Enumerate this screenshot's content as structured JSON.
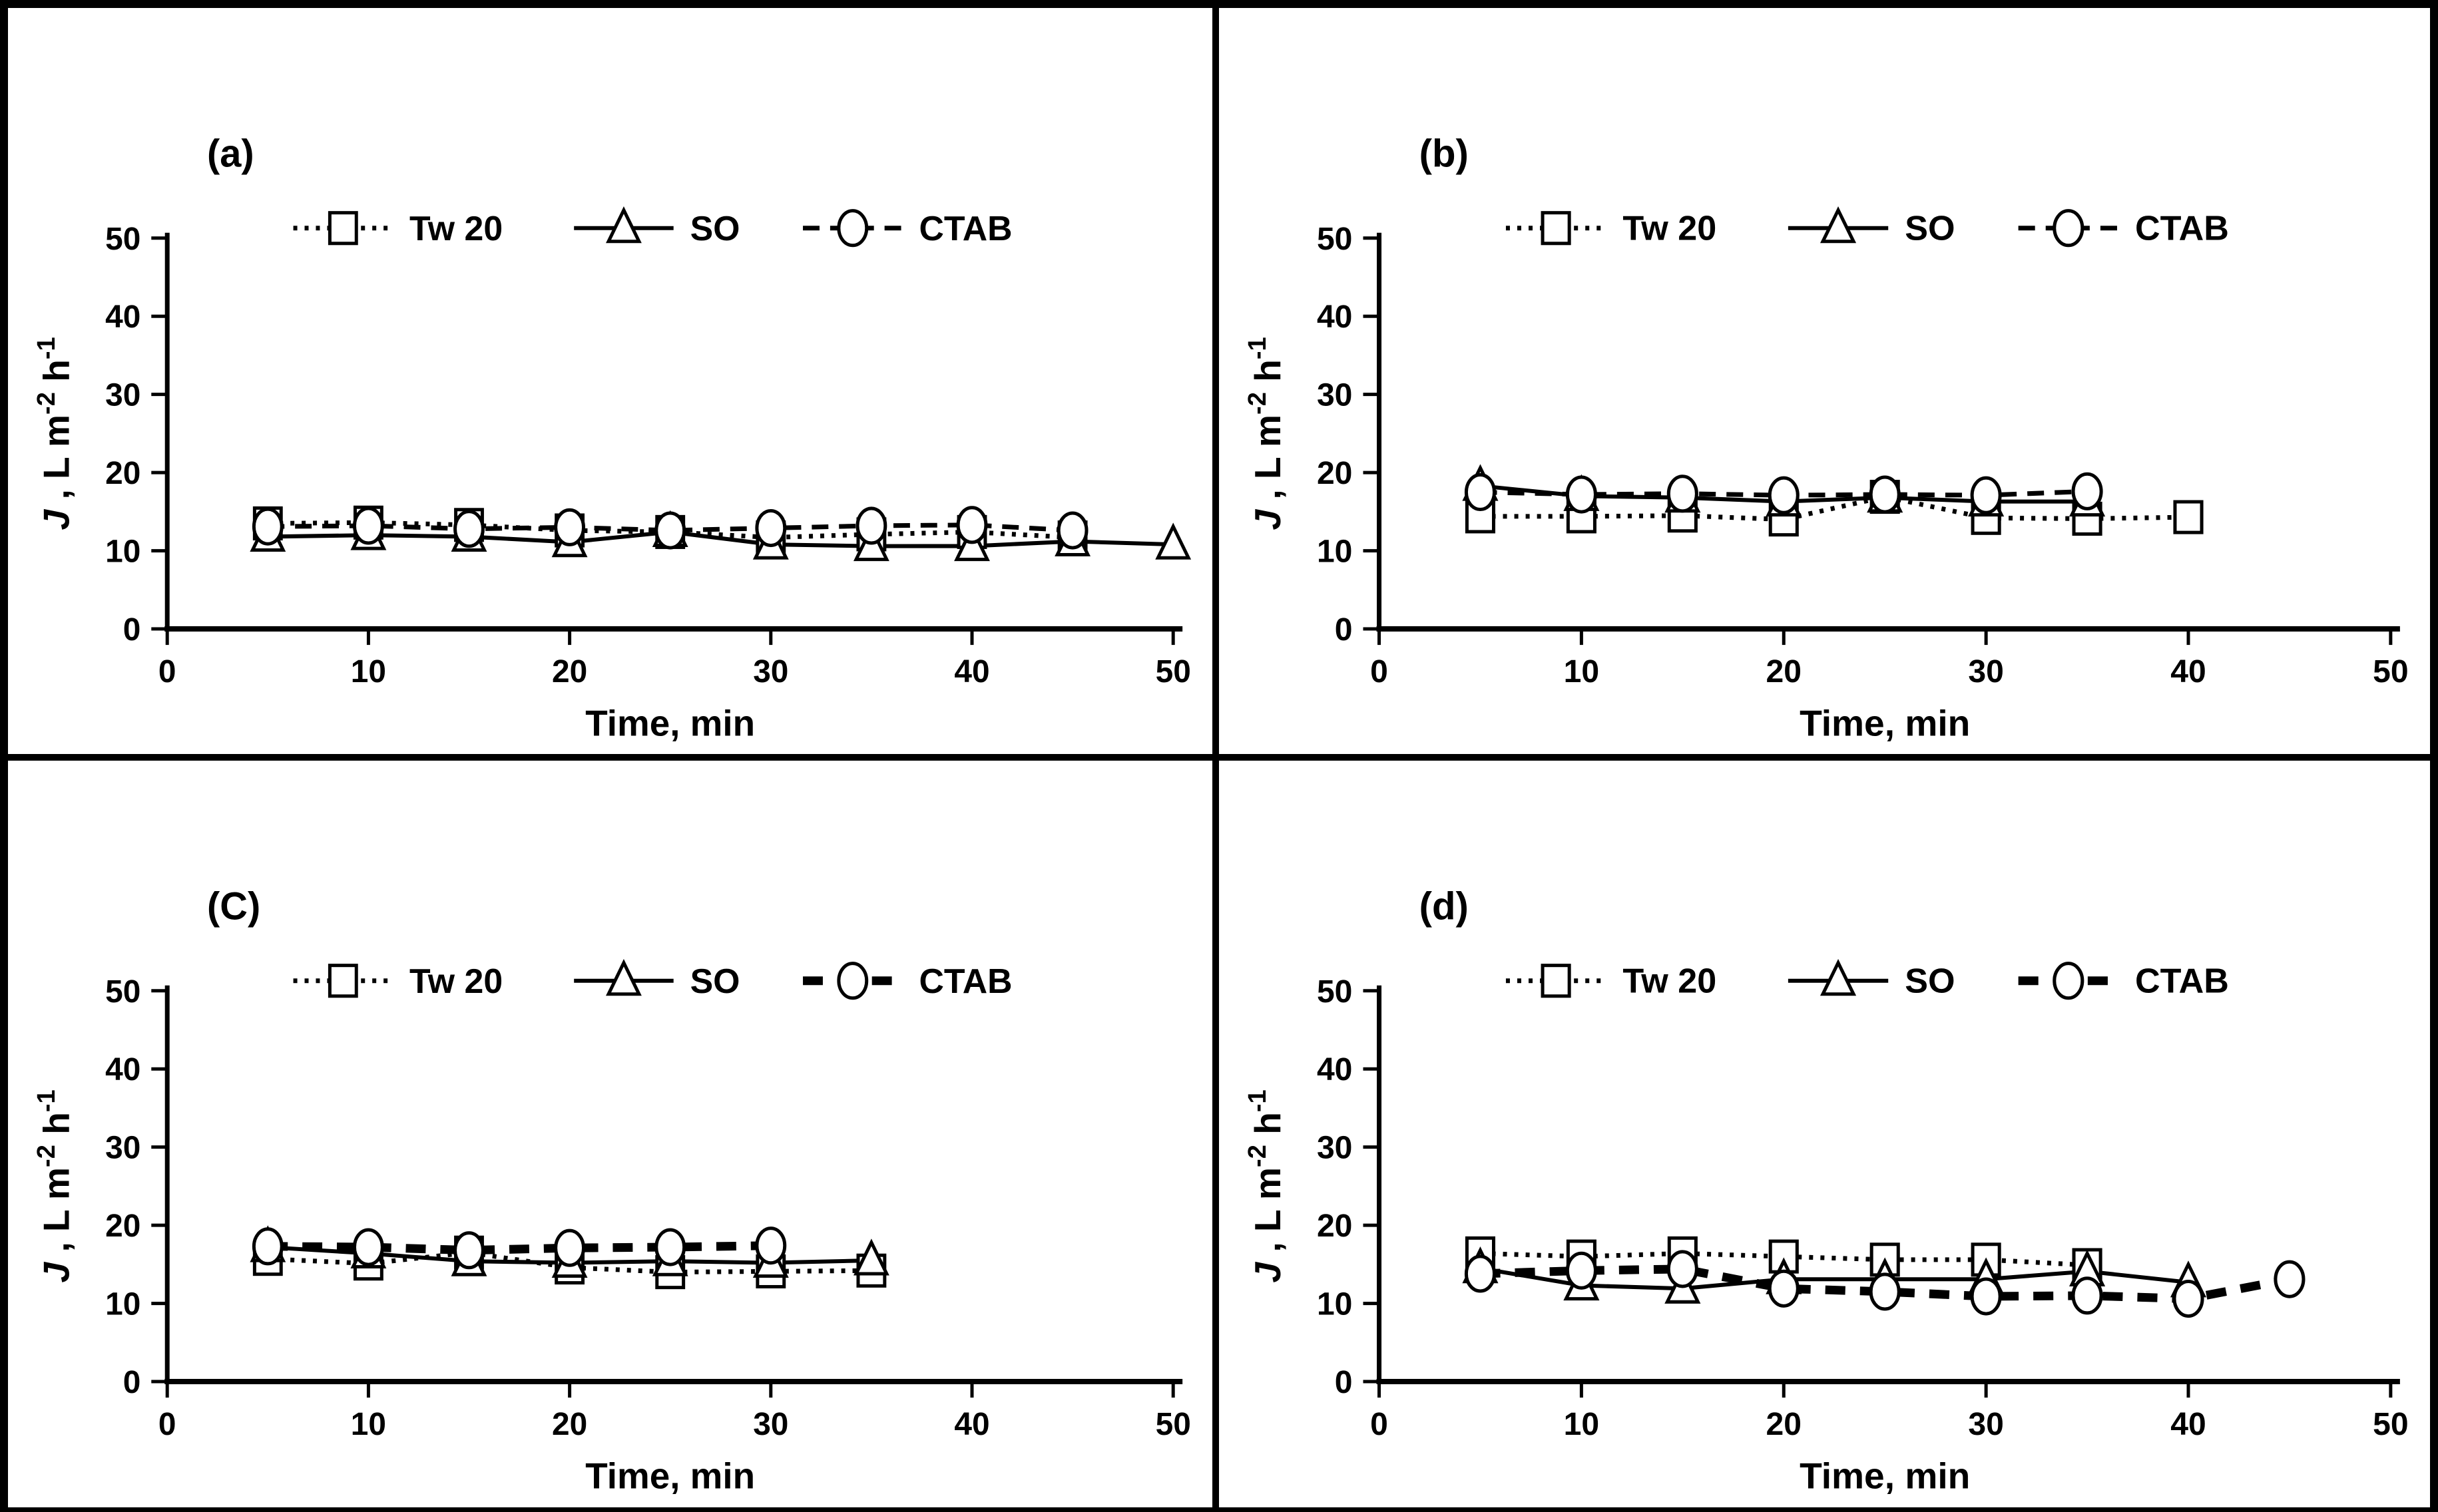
{
  "figure": {
    "background": "#ffffff",
    "line_color": "#000000",
    "panel_count": 4
  },
  "chart_data": [
    {
      "type": "line",
      "panel_label": "(a)",
      "xlabel": "Time, min",
      "ylabel": "J, L m-2 h-1",
      "ylabel_segments": [
        {
          "t": "J",
          "italic": true
        },
        {
          "t": " , L m"
        },
        {
          "t": "-2",
          "sup": true
        },
        {
          "t": " h"
        },
        {
          "t": "-1",
          "sup": true
        }
      ],
      "xlim": [
        0,
        50
      ],
      "ylim": [
        0,
        50
      ],
      "xticks": [
        0,
        10,
        20,
        30,
        40,
        50
      ],
      "yticks": [
        0,
        10,
        20,
        30,
        40,
        50
      ],
      "grid": false,
      "legend_position": "top-inside",
      "series": [
        {
          "name": "Tw 20",
          "marker": "square",
          "line": "dotted",
          "heavy": false,
          "x": [
            5,
            10,
            15,
            20,
            25,
            30,
            35,
            40,
            45
          ],
          "y": [
            13.5,
            13.6,
            13.3,
            12.6,
            12.4,
            11.7,
            12.1,
            12.4,
            11.7
          ]
        },
        {
          "name": "SO",
          "marker": "triangle",
          "line": "solid",
          "heavy": false,
          "x": [
            5,
            10,
            15,
            20,
            25,
            30,
            35,
            40,
            45,
            50
          ],
          "y": [
            11.8,
            12.0,
            11.8,
            11.1,
            12.4,
            10.8,
            10.6,
            10.6,
            11.2,
            10.8
          ]
        },
        {
          "name": "CTAB",
          "marker": "circle",
          "line": "dashed",
          "heavy": false,
          "x": [
            5,
            10,
            15,
            20,
            25,
            30,
            35,
            40,
            45
          ],
          "y": [
            13.1,
            13.2,
            12.8,
            13.0,
            12.6,
            12.9,
            13.2,
            13.3,
            12.6
          ]
        }
      ]
    },
    {
      "type": "line",
      "panel_label": "(b)",
      "xlabel": "Time, min",
      "ylabel": "J, L m-2 h-1",
      "ylabel_segments": [
        {
          "t": "J",
          "italic": true
        },
        {
          "t": " , L m"
        },
        {
          "t": "-2",
          "sup": true
        },
        {
          "t": " h"
        },
        {
          "t": "-1",
          "sup": true
        }
      ],
      "xlim": [
        0,
        50
      ],
      "ylim": [
        0,
        50
      ],
      "xticks": [
        0,
        10,
        20,
        30,
        40,
        50
      ],
      "yticks": [
        0,
        10,
        20,
        30,
        40,
        50
      ],
      "grid": false,
      "legend_position": "top-inside",
      "series": [
        {
          "name": "Tw 20",
          "marker": "square",
          "line": "dotted",
          "heavy": false,
          "x": [
            5,
            10,
            15,
            20,
            25,
            30,
            35,
            40
          ],
          "y": [
            14.4,
            14.4,
            14.5,
            14.0,
            16.9,
            14.2,
            14.1,
            14.3
          ]
        },
        {
          "name": "SO",
          "marker": "triangle",
          "line": "solid",
          "heavy": false,
          "x": [
            5,
            10,
            15,
            20,
            25,
            30,
            35
          ],
          "y": [
            18.3,
            17.0,
            16.8,
            16.3,
            16.8,
            16.3,
            16.3
          ]
        },
        {
          "name": "CTAB",
          "marker": "circle",
          "line": "dashed",
          "heavy": false,
          "x": [
            5,
            10,
            15,
            20,
            25,
            30,
            35
          ],
          "y": [
            17.5,
            17.2,
            17.3,
            17.1,
            17.2,
            17.1,
            17.6
          ]
        }
      ]
    },
    {
      "type": "line",
      "panel_label": "(C)",
      "xlabel": "Time, min",
      "ylabel": "J, L m-2 h-1",
      "ylabel_segments": [
        {
          "t": "J",
          "italic": true
        },
        {
          "t": " , L m"
        },
        {
          "t": "-2",
          "sup": true
        },
        {
          "t": " h"
        },
        {
          "t": "-1",
          "sup": true
        }
      ],
      "xlim": [
        0,
        50
      ],
      "ylim": [
        0,
        50
      ],
      "xticks": [
        0,
        10,
        20,
        30,
        40,
        50
      ],
      "yticks": [
        0,
        10,
        20,
        30,
        40,
        50
      ],
      "grid": false,
      "legend_position": "top-inside",
      "series": [
        {
          "name": "Tw 20",
          "marker": "square",
          "line": "dotted",
          "heavy": false,
          "x": [
            5,
            10,
            15,
            20,
            25,
            30,
            35
          ],
          "y": [
            15.7,
            15.1,
            16.5,
            14.6,
            14.0,
            14.1,
            14.2
          ]
        },
        {
          "name": "SO",
          "marker": "triangle",
          "line": "solid",
          "heavy": false,
          "x": [
            5,
            10,
            15,
            20,
            25,
            30,
            35
          ],
          "y": [
            17.2,
            16.4,
            15.4,
            15.2,
            15.4,
            15.2,
            15.5
          ]
        },
        {
          "name": "CTAB",
          "marker": "circle",
          "line": "dashed",
          "heavy": true,
          "x": [
            5,
            10,
            15,
            20,
            25,
            30
          ],
          "y": [
            17.3,
            17.2,
            16.8,
            17.1,
            17.2,
            17.4
          ]
        }
      ]
    },
    {
      "type": "line",
      "panel_label": "(d)",
      "xlabel": "Time, min",
      "ylabel": "J, L m-2 h-1",
      "ylabel_segments": [
        {
          "t": "J",
          "italic": true
        },
        {
          "t": " , L m"
        },
        {
          "t": "-2",
          "sup": true
        },
        {
          "t": " h"
        },
        {
          "t": "-1",
          "sup": true
        }
      ],
      "xlim": [
        0,
        50
      ],
      "ylim": [
        0,
        50
      ],
      "xticks": [
        0,
        10,
        20,
        30,
        40,
        50
      ],
      "yticks": [
        0,
        10,
        20,
        30,
        40,
        50
      ],
      "grid": false,
      "legend_position": "top-inside",
      "series": [
        {
          "name": "Tw 20",
          "marker": "square",
          "line": "dotted",
          "heavy": false,
          "x": [
            5,
            10,
            15,
            20,
            25,
            30,
            35
          ],
          "y": [
            16.4,
            16.0,
            16.4,
            16.0,
            15.6,
            15.6,
            14.9
          ]
        },
        {
          "name": "SO",
          "marker": "triangle",
          "line": "solid",
          "heavy": false,
          "x": [
            5,
            10,
            15,
            20,
            25,
            30,
            35,
            40
          ],
          "y": [
            14.5,
            12.3,
            11.9,
            13.1,
            13.1,
            13.1,
            14.1,
            12.7
          ]
        },
        {
          "name": "CTAB",
          "marker": "circle",
          "line": "dashed",
          "heavy": true,
          "x": [
            5,
            10,
            15,
            20,
            25,
            30,
            35,
            40,
            45
          ],
          "y": [
            13.8,
            14.2,
            14.4,
            11.9,
            11.5,
            10.9,
            11.0,
            10.6,
            13.1
          ]
        }
      ]
    }
  ]
}
